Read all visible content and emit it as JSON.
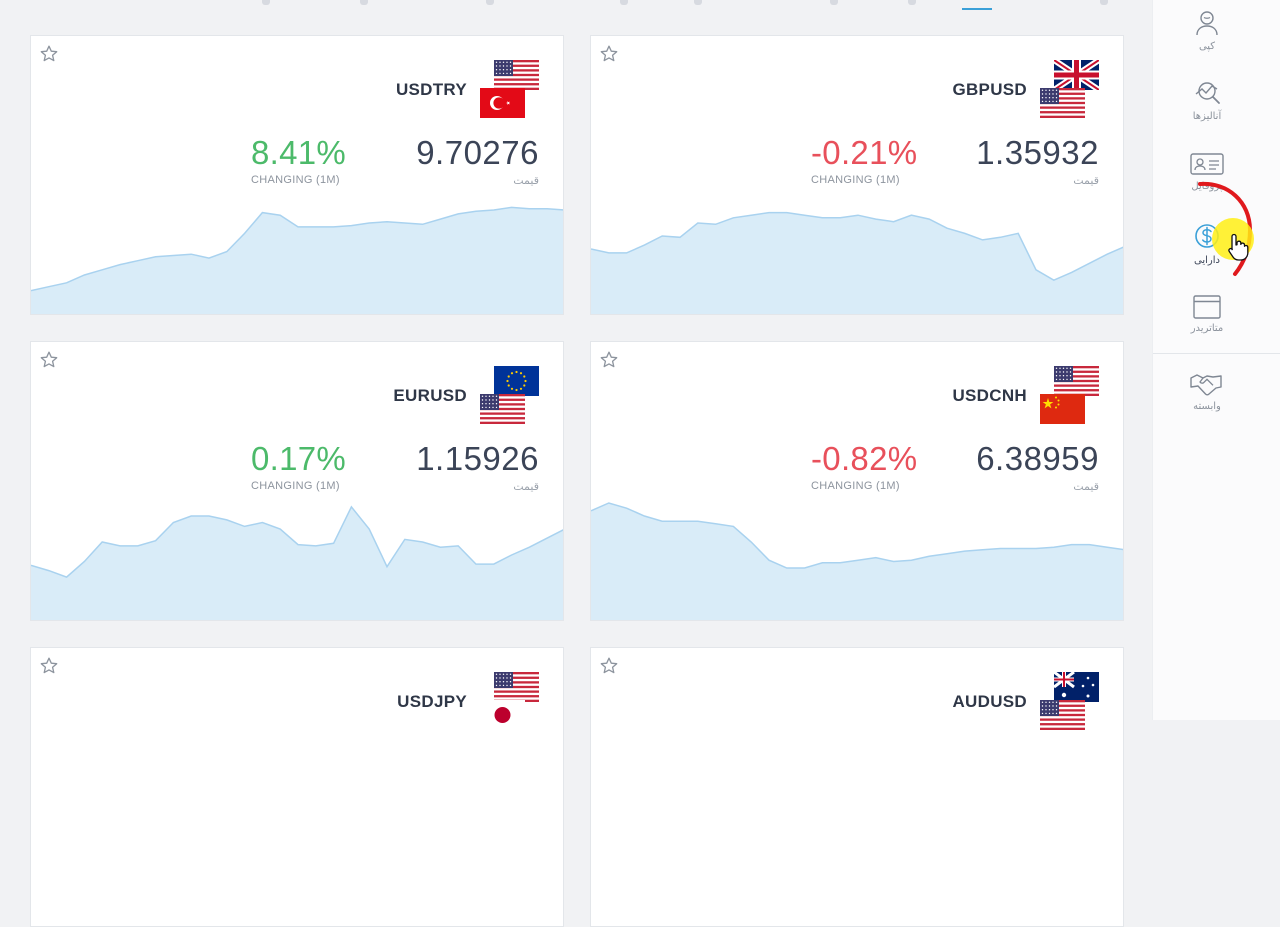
{
  "sidebar": {
    "items": [
      {
        "label": "کپی",
        "icon": "copy-user-icon"
      },
      {
        "label": "آنالیزها",
        "icon": "analysis-icon"
      },
      {
        "label": "پروفایل",
        "icon": "profile-card-icon"
      },
      {
        "label": "دارایی",
        "icon": "dollar-coin-icon",
        "active": true
      },
      {
        "label": "متاتریدر",
        "icon": "window-icon"
      },
      {
        "label": "وابسته",
        "icon": "handshake-icon"
      }
    ]
  },
  "labels": {
    "change": "CHANGING (1M)",
    "price": "قیمت"
  },
  "colors": {
    "positive": "#4cba6a",
    "negative": "#e8505b",
    "chart_fill": "#d9ecf8",
    "chart_line": "#a9d2ef",
    "accent": "#3aa0d8"
  },
  "instruments": [
    {
      "symbol": "USDTRY",
      "change": "8.41%",
      "direction": "positive",
      "price": "9.70276",
      "flags": [
        "usa",
        "turkey"
      ],
      "trend": [
        18,
        21,
        24,
        30,
        34,
        38,
        41,
        44,
        45,
        46,
        43,
        48,
        62,
        78,
        76,
        67,
        67,
        67,
        68,
        70,
        71,
        70,
        69,
        73,
        77,
        79,
        80,
        82,
        81,
        81,
        80
      ]
    },
    {
      "symbol": "GBPUSD",
      "change": "-0.21%",
      "direction": "negative",
      "price": "1.35932",
      "flags": [
        "uk",
        "usa"
      ],
      "trend": [
        50,
        47,
        47,
        53,
        60,
        59,
        70,
        69,
        74,
        76,
        78,
        78,
        76,
        74,
        74,
        76,
        73,
        71,
        76,
        73,
        66,
        62,
        57,
        59,
        62,
        34,
        26,
        32,
        39,
        46,
        52
      ]
    },
    {
      "symbol": "EURUSD",
      "change": "0.17%",
      "direction": "positive",
      "price": "1.15926",
      "flags": [
        "eu",
        "usa"
      ],
      "trend": [
        42,
        38,
        33,
        45,
        60,
        57,
        57,
        61,
        75,
        80,
        80,
        77,
        72,
        75,
        70,
        58,
        57,
        59,
        87,
        70,
        41,
        62,
        60,
        56,
        57,
        43,
        43,
        50,
        56,
        63,
        70
      ]
    },
    {
      "symbol": "USDCNH",
      "change": "-0.82%",
      "direction": "negative",
      "price": "6.38959",
      "flags": [
        "usa",
        "china"
      ],
      "trend": [
        84,
        90,
        86,
        80,
        76,
        76,
        76,
        74,
        72,
        60,
        46,
        40,
        40,
        44,
        44,
        46,
        48,
        45,
        46,
        49,
        51,
        53,
        54,
        55,
        55,
        55,
        56,
        58,
        58,
        56,
        54
      ]
    },
    {
      "symbol": "USDJPY",
      "change": "",
      "direction": "positive",
      "price": "",
      "flags": [
        "usa",
        "japan"
      ],
      "trend": []
    },
    {
      "symbol": "AUDUSD",
      "change": "",
      "direction": "positive",
      "price": "",
      "flags": [
        "australia",
        "usa"
      ],
      "trend": []
    }
  ]
}
